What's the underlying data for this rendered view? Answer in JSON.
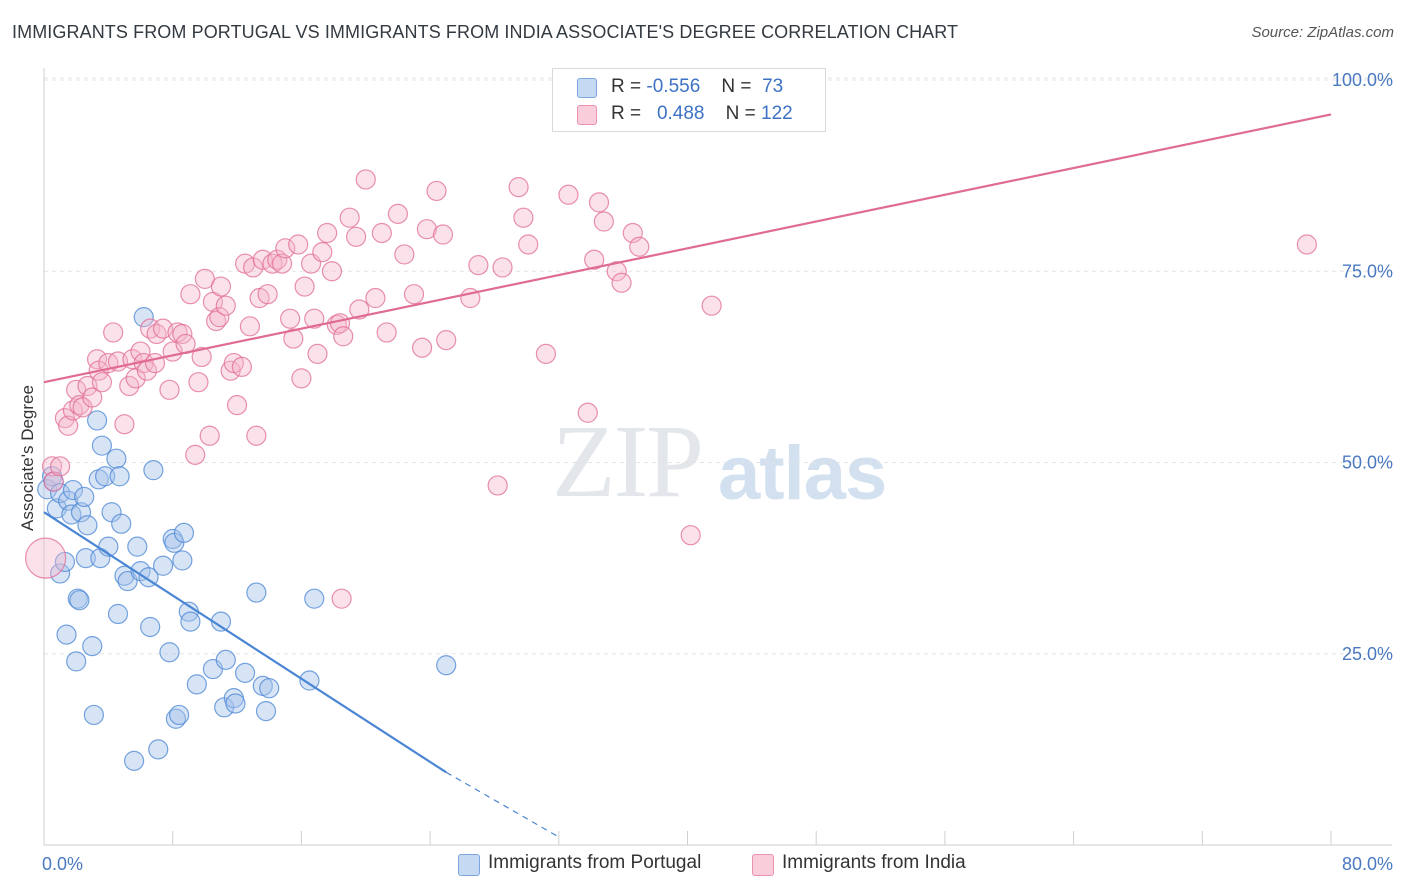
{
  "title": "IMMIGRANTS FROM PORTUGAL VS IMMIGRANTS FROM INDIA ASSOCIATE'S DEGREE CORRELATION CHART",
  "source": "Source: ZipAtlas.com",
  "watermark": {
    "zip": "ZIP",
    "atlas": "atlas"
  },
  "legend": {
    "rows": [
      {
        "r_label": "R =",
        "r_value": "-0.556",
        "n_label": "N =",
        "n_value": "73",
        "color": "#a7c4ec"
      },
      {
        "r_label": "R =",
        "r_value": "0.488",
        "n_label": "N =",
        "n_value": "122",
        "color": "#f5b6cb"
      }
    ]
  },
  "bottom_legend": [
    {
      "label": "Immigrants from Portugal",
      "color": "#a7c4ec"
    },
    {
      "label": "Immigrants from India",
      "color": "#f5b6cb"
    }
  ],
  "chart_data": {
    "type": "scatter",
    "title": "IMMIGRANTS FROM PORTUGAL VS IMMIGRANTS FROM INDIA ASSOCIATE'S DEGREE CORRELATION CHART",
    "xlabel": "",
    "ylabel": "Associate's Degree",
    "xlim": [
      0,
      80
    ],
    "ylim": [
      0,
      105
    ],
    "x_tick_labels": [
      "0.0%",
      "80.0%"
    ],
    "y_ticks": [
      25,
      50,
      75,
      100
    ],
    "y_tick_labels": [
      "25.0%",
      "50.0%",
      "75.0%",
      "100.0%"
    ],
    "grid": true,
    "legend_position": "top-center",
    "series": [
      {
        "name": "Immigrants from Portugal",
        "color": "#4a86d4",
        "fill": "#a7c4ec",
        "trend": {
          "x0": 0,
          "y0": 43.5,
          "x1": 25,
          "y1": 9.5,
          "dash_to_x": 32,
          "dash_to_y": 0
        },
        "points": [
          [
            0.2,
            46.5
          ],
          [
            0.5,
            48.2
          ],
          [
            0.6,
            47.5
          ],
          [
            0.8,
            44
          ],
          [
            1,
            46
          ],
          [
            1,
            35.5
          ],
          [
            1.3,
            37
          ],
          [
            1.4,
            27.5
          ],
          [
            1.5,
            45
          ],
          [
            1.7,
            43.2
          ],
          [
            1.8,
            46.4
          ],
          [
            2,
            24
          ],
          [
            2.1,
            32.2
          ],
          [
            2.2,
            32
          ],
          [
            2.3,
            43.5
          ],
          [
            2.5,
            45.5
          ],
          [
            2.6,
            37.5
          ],
          [
            2.7,
            41.8
          ],
          [
            3,
            26
          ],
          [
            3.1,
            17
          ],
          [
            3.3,
            55.5
          ],
          [
            3.4,
            47.8
          ],
          [
            3.5,
            37.5
          ],
          [
            3.6,
            52.2
          ],
          [
            3.8,
            48.2
          ],
          [
            4,
            39
          ],
          [
            4.2,
            43.5
          ],
          [
            4.5,
            50.5
          ],
          [
            4.6,
            30.2
          ],
          [
            4.7,
            48.2
          ],
          [
            4.8,
            42
          ],
          [
            5,
            35.2
          ],
          [
            5.2,
            34.5
          ],
          [
            5.6,
            11
          ],
          [
            5.8,
            39
          ],
          [
            6,
            35.8
          ],
          [
            6.2,
            69
          ],
          [
            6.5,
            35
          ],
          [
            6.6,
            28.5
          ],
          [
            6.8,
            49
          ],
          [
            7.1,
            12.5
          ],
          [
            7.4,
            36.5
          ],
          [
            7.8,
            25.2
          ],
          [
            8,
            40
          ],
          [
            8.1,
            39.5
          ],
          [
            8.2,
            16.5
          ],
          [
            8.4,
            17
          ],
          [
            8.6,
            37.2
          ],
          [
            8.7,
            40.8
          ],
          [
            9,
            30.5
          ],
          [
            9.1,
            29.2
          ],
          [
            9.5,
            21
          ],
          [
            10.5,
            23
          ],
          [
            11,
            29.2
          ],
          [
            11.2,
            18
          ],
          [
            11.3,
            24.2
          ],
          [
            11.8,
            19.2
          ],
          [
            11.9,
            18.5
          ],
          [
            12.5,
            22.5
          ],
          [
            13.2,
            33
          ],
          [
            13.6,
            20.8
          ],
          [
            13.8,
            17.5
          ],
          [
            14,
            20.5
          ],
          [
            16.5,
            21.5
          ],
          [
            16.8,
            32.2
          ],
          [
            25,
            23.5
          ]
        ]
      },
      {
        "name": "Immigrants from India",
        "color": "#e06b95",
        "fill": "#f5b6cb",
        "trend": {
          "x0": 0,
          "y0": 60.5,
          "x1": 80,
          "y1": 95.5
        },
        "points": [
          [
            0.1,
            37.5
          ],
          [
            0.5,
            49.5
          ],
          [
            0.6,
            47.5
          ],
          [
            1,
            49.5
          ],
          [
            1.3,
            55.8
          ],
          [
            1.5,
            54.8
          ],
          [
            1.8,
            56.8
          ],
          [
            2,
            59.5
          ],
          [
            2.2,
            57.5
          ],
          [
            2.4,
            57.2
          ],
          [
            2.7,
            60
          ],
          [
            3,
            58.5
          ],
          [
            3.3,
            63.5
          ],
          [
            3.4,
            62
          ],
          [
            3.6,
            60.5
          ],
          [
            4,
            63
          ],
          [
            4.3,
            67
          ],
          [
            4.6,
            63.2
          ],
          [
            5,
            55
          ],
          [
            5.3,
            60
          ],
          [
            5.5,
            63.5
          ],
          [
            5.7,
            61
          ],
          [
            6,
            64.5
          ],
          [
            6.2,
            63
          ],
          [
            6.4,
            62
          ],
          [
            6.6,
            67.5
          ],
          [
            6.9,
            63
          ],
          [
            7,
            66.8
          ],
          [
            7.4,
            67.5
          ],
          [
            7.8,
            59.5
          ],
          [
            8,
            64.5
          ],
          [
            8.3,
            67
          ],
          [
            8.6,
            66.8
          ],
          [
            8.8,
            65.5
          ],
          [
            9.1,
            72
          ],
          [
            9.4,
            51
          ],
          [
            9.6,
            60.5
          ],
          [
            9.8,
            63.8
          ],
          [
            10,
            74
          ],
          [
            10.3,
            53.5
          ],
          [
            10.5,
            71
          ],
          [
            10.7,
            68.5
          ],
          [
            10.9,
            69
          ],
          [
            11,
            73
          ],
          [
            11.3,
            70.5
          ],
          [
            11.6,
            62
          ],
          [
            11.8,
            63
          ],
          [
            12,
            57.5
          ],
          [
            12.3,
            62.5
          ],
          [
            12.5,
            76
          ],
          [
            12.8,
            67.8
          ],
          [
            13,
            75.5
          ],
          [
            13.2,
            53.5
          ],
          [
            13.4,
            71.5
          ],
          [
            13.6,
            76.5
          ],
          [
            13.9,
            72
          ],
          [
            14.2,
            76
          ],
          [
            14.5,
            76.5
          ],
          [
            14.8,
            76
          ],
          [
            15,
            78
          ],
          [
            15.3,
            68.8
          ],
          [
            15.5,
            66.2
          ],
          [
            15.8,
            78.5
          ],
          [
            16,
            61
          ],
          [
            16.2,
            73
          ],
          [
            16.6,
            76
          ],
          [
            16.8,
            68.8
          ],
          [
            17,
            64.2
          ],
          [
            17.3,
            77.5
          ],
          [
            17.6,
            80
          ],
          [
            17.9,
            75
          ],
          [
            18.2,
            68
          ],
          [
            18.4,
            68.2
          ],
          [
            18.6,
            66.5
          ],
          [
            19,
            82
          ],
          [
            19.4,
            79.5
          ],
          [
            19.6,
            70
          ],
          [
            20,
            87
          ],
          [
            20.6,
            71.5
          ],
          [
            21,
            80
          ],
          [
            21.3,
            67
          ],
          [
            22,
            82.5
          ],
          [
            22.4,
            77.2
          ],
          [
            23,
            72
          ],
          [
            23.5,
            65
          ],
          [
            23.8,
            80.5
          ],
          [
            24.4,
            85.5
          ],
          [
            24.8,
            79.8
          ],
          [
            25,
            66
          ],
          [
            26.5,
            71.5
          ],
          [
            27,
            75.8
          ],
          [
            28.2,
            47
          ],
          [
            28.5,
            75.5
          ],
          [
            29.5,
            86
          ],
          [
            29.8,
            82
          ],
          [
            30.1,
            78.5
          ],
          [
            31.2,
            64.2
          ],
          [
            32.6,
            85
          ],
          [
            33.8,
            56.5
          ],
          [
            34.2,
            76.5
          ],
          [
            34.5,
            84
          ],
          [
            34.8,
            81.5
          ],
          [
            35.6,
            75
          ],
          [
            35.9,
            73.5
          ],
          [
            36.6,
            80
          ],
          [
            37,
            78.2
          ],
          [
            40.2,
            40.5
          ],
          [
            41.5,
            70.5
          ],
          [
            78.5,
            78.5
          ],
          [
            18.5,
            32.2
          ]
        ]
      }
    ]
  }
}
